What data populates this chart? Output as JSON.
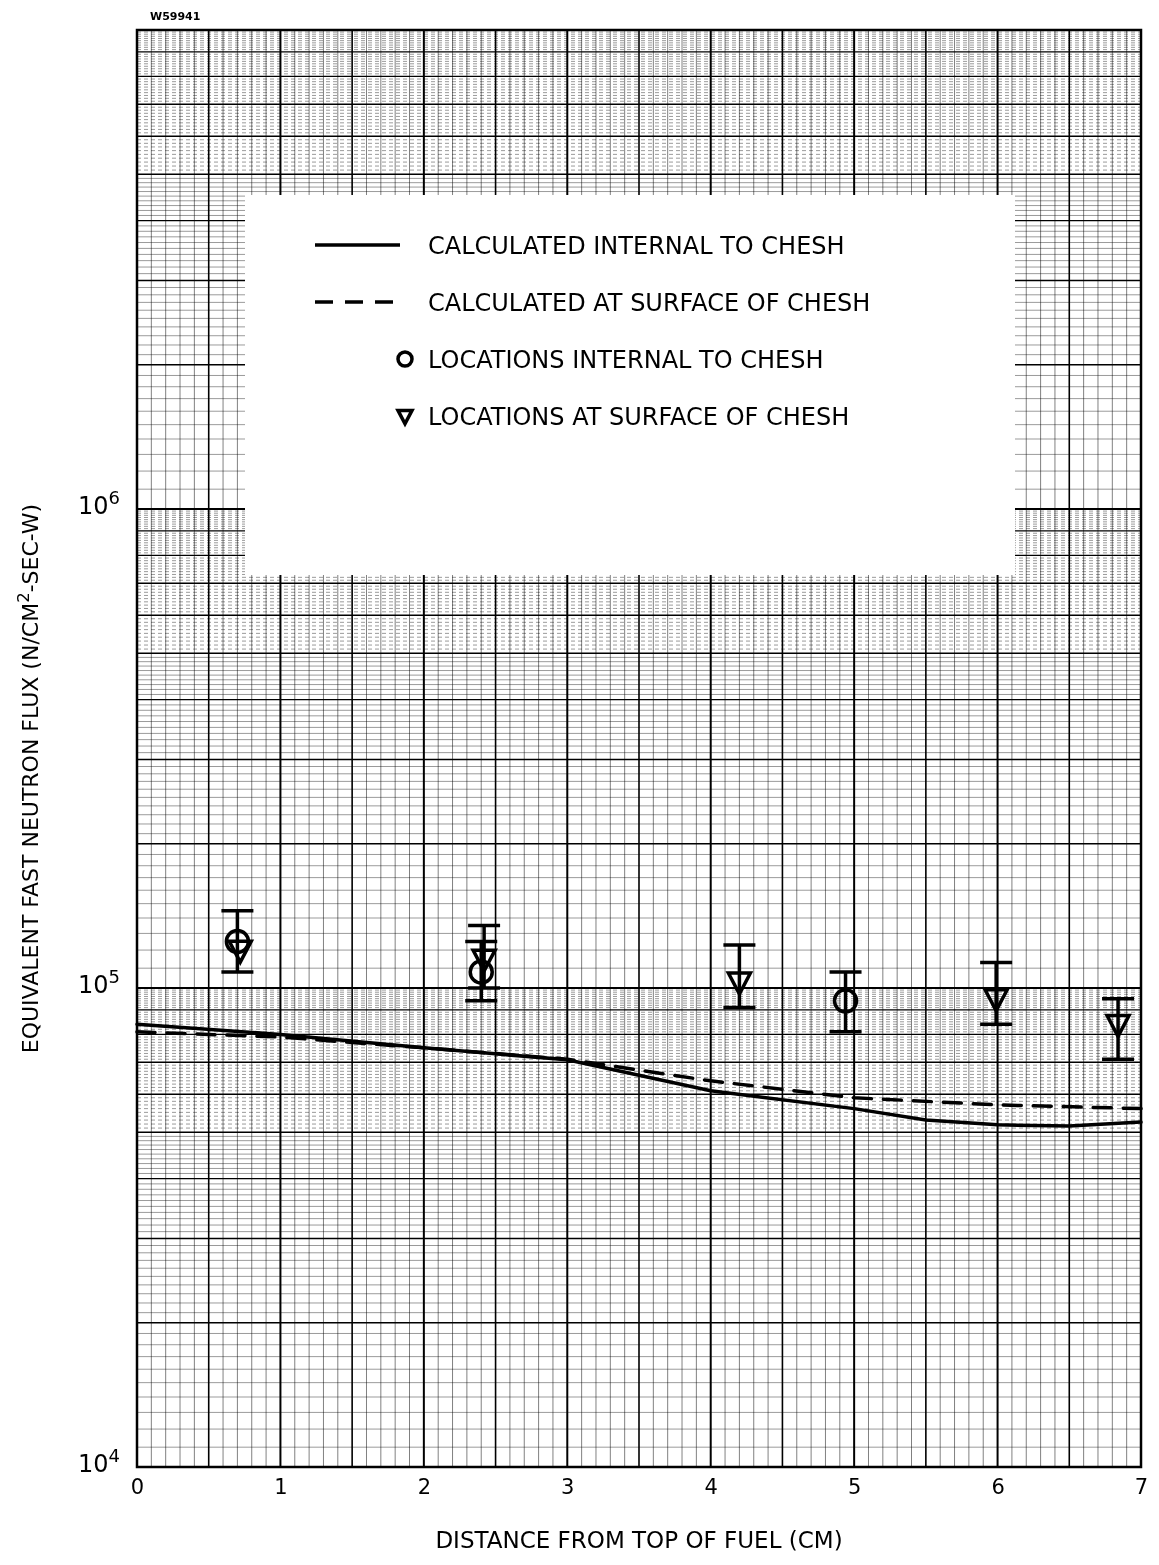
{
  "chart_data": {
    "type": "line",
    "xlabel": "DISTANCE FROM TOP OF FUEL (CM)",
    "ylabel": "EQUIVALENT FAST NEUTRON FLUX (N/CM$^{2}$-SEC-W)",
    "annotations": [
      "W59941"
    ],
    "xlim": [
      0,
      7
    ],
    "xticks": [
      0,
      1,
      2,
      3,
      4,
      5,
      6,
      7
    ],
    "ylim": [
      10000,
      10000000
    ],
    "yticks": [
      {
        "value": 10000,
        "label": "10$^{4}$"
      },
      {
        "value": 100000,
        "label": "10$^{5}$"
      },
      {
        "value": 1000000,
        "label": "10$^{6}$"
      }
    ],
    "log": "y",
    "grid": true,
    "legend": "top",
    "series": [
      {
        "name": "CALCULATED INTERNAL TO CHESH",
        "type": "line",
        "line_style": "solid",
        "marker": "none",
        "color": "#000000",
        "x": [
          0,
          1,
          2,
          3,
          4,
          5,
          5.5,
          6,
          6.5,
          7
        ],
        "values": [
          84000,
          80000,
          75000,
          70800,
          61000,
          56000,
          53000,
          51800,
          51500,
          52500
        ]
      },
      {
        "name": "CALCULATED AT SURFACE OF CHESH",
        "type": "line",
        "line_style": "dashed",
        "marker": "none",
        "color": "#000000",
        "x": [
          0,
          1,
          2,
          3,
          4,
          5,
          6,
          7
        ],
        "values": [
          81000,
          79000,
          75000,
          71000,
          64000,
          59000,
          57000,
          56000
        ]
      },
      {
        "name": "LOCATIONS INTERNAL TO CHESH",
        "type": "scatter",
        "marker": "circle",
        "color": "#000000",
        "x": [
          0.7,
          2.4,
          4.94
        ],
        "values": [
          125000,
          108000,
          94000
        ],
        "errors": [
          [
            108000,
            145000
          ],
          [
            94000,
            125000
          ],
          [
            81000,
            108000
          ]
        ]
      },
      {
        "name": "LOCATIONS AT SURFACE OF CHESH",
        "type": "scatter",
        "marker": "triangle",
        "color": "#000000",
        "x": [
          0.72,
          2.42,
          4.2,
          5.99,
          6.84
        ],
        "values": [
          120000,
          115000,
          103000,
          95000,
          84000
        ],
        "errors": [
          null,
          [
            100000,
            135000
          ],
          [
            91000,
            123000
          ],
          [
            84000,
            113000
          ],
          [
            71000,
            95000
          ]
        ]
      }
    ]
  }
}
